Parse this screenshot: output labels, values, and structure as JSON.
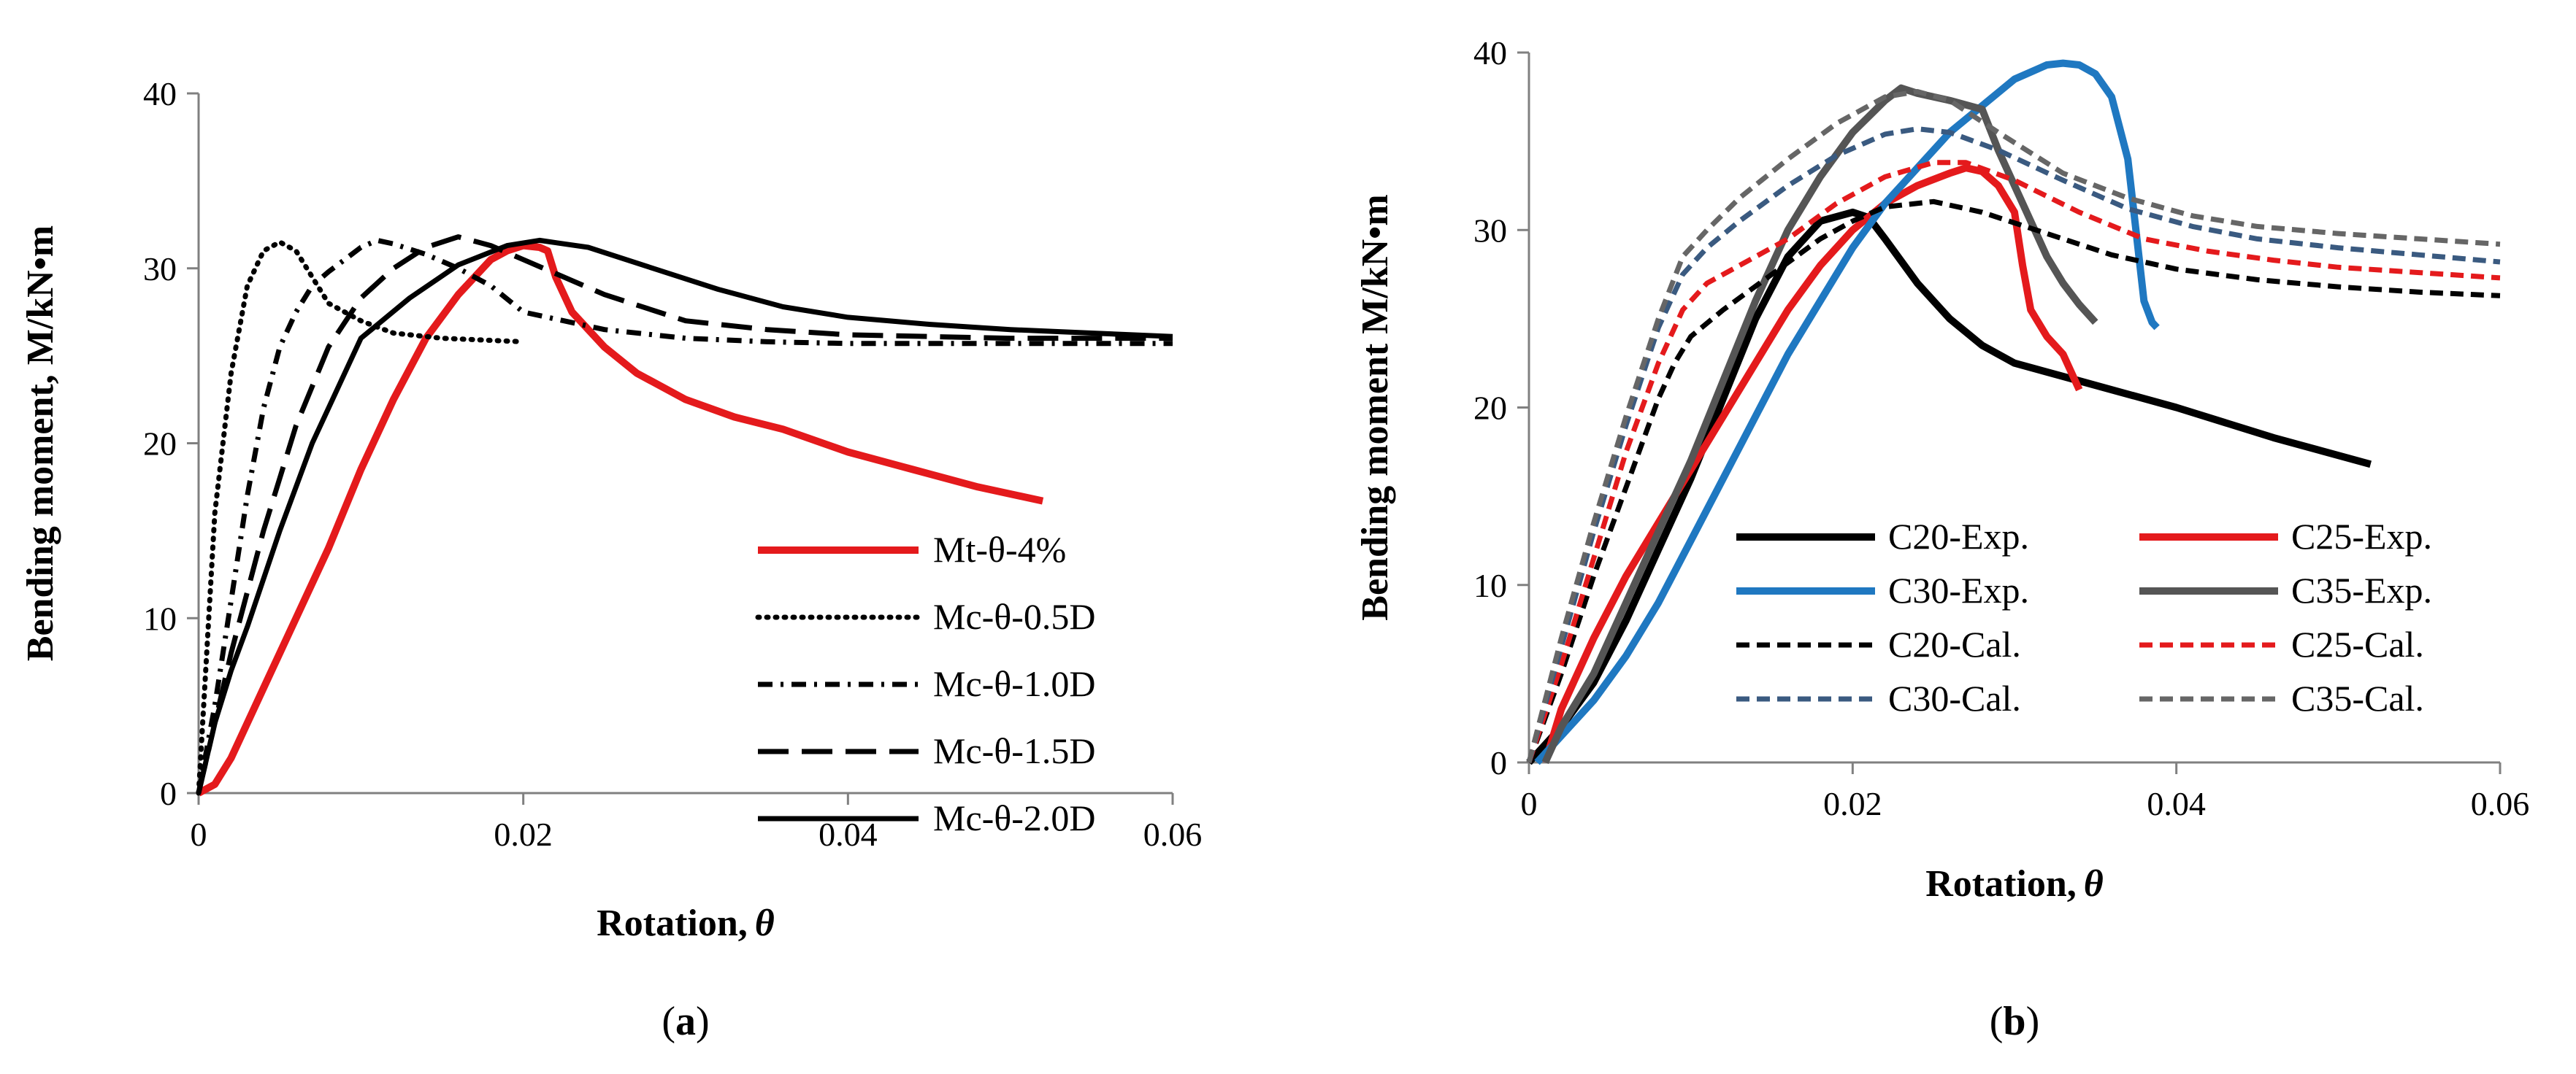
{
  "chart_data": [
    {
      "type": "line",
      "caption_letter": "a",
      "caption_open": "(",
      "caption_close": ")",
      "xlabel": "Rotation,",
      "xlabel_symbol": "θ",
      "ylabel": "Bending moment, M/kN•m",
      "xlim": [
        0,
        0.06
      ],
      "ylim": [
        0,
        40
      ],
      "xticks": [
        0,
        0.02,
        0.04,
        0.06
      ],
      "xtick_labels": [
        "0",
        "0.02",
        "0.04",
        "0.06"
      ],
      "yticks": [
        0,
        10,
        20,
        30,
        40
      ],
      "ytick_labels": [
        "0",
        "10",
        "20",
        "30",
        "40"
      ],
      "legend_position": "bottom-right",
      "series": [
        {
          "name": "Mt-θ-4%",
          "color": "#e41a1c",
          "style": "solid",
          "weight": "thick",
          "x": [
            0,
            0.001,
            0.002,
            0.004,
            0.006,
            0.008,
            0.01,
            0.012,
            0.014,
            0.016,
            0.018,
            0.019,
            0.02,
            0.021,
            0.0215,
            0.022,
            0.023,
            0.025,
            0.027,
            0.03,
            0.033,
            0.036,
            0.04,
            0.044,
            0.048,
            0.052
          ],
          "y": [
            0,
            0.5,
            2,
            6,
            10,
            14,
            18.5,
            22.5,
            26,
            28.5,
            30.5,
            31,
            31.3,
            31.2,
            31.0,
            29.5,
            27.5,
            25.5,
            24,
            22.5,
            21.5,
            20.8,
            19.5,
            18.5,
            17.5,
            16.7
          ]
        },
        {
          "name": "Mc-θ-0.5D",
          "color": "#000000",
          "style": "dotted",
          "weight": "normal",
          "x": [
            0,
            0.0005,
            0.001,
            0.002,
            0.003,
            0.004,
            0.005,
            0.006,
            0.007,
            0.008,
            0.01,
            0.012,
            0.015,
            0.02
          ],
          "y": [
            0,
            8,
            16,
            24,
            29,
            31,
            31.5,
            31,
            29.5,
            28,
            27,
            26.3,
            26,
            25.8
          ]
        },
        {
          "name": "Mc-θ-1.0D",
          "color": "#000000",
          "style": "dashdot",
          "weight": "normal",
          "x": [
            0,
            0.001,
            0.002,
            0.003,
            0.004,
            0.005,
            0.006,
            0.007,
            0.008,
            0.009,
            0.01,
            0.011,
            0.012,
            0.014,
            0.016,
            0.018,
            0.02,
            0.025,
            0.03,
            0.035,
            0.04,
            0.05,
            0.06
          ],
          "y": [
            0,
            5,
            11,
            17,
            22,
            25.5,
            27.5,
            29,
            29.8,
            30.5,
            31.2,
            31.6,
            31.4,
            30.8,
            30,
            29,
            27.5,
            26.5,
            26,
            25.8,
            25.7,
            25.7,
            25.7
          ]
        },
        {
          "name": "Mc-θ-1.5D",
          "color": "#000000",
          "style": "longdash",
          "weight": "normal",
          "x": [
            0,
            0.002,
            0.004,
            0.006,
            0.008,
            0.01,
            0.012,
            0.014,
            0.016,
            0.018,
            0.02,
            0.025,
            0.03,
            0.035,
            0.04,
            0.05,
            0.06
          ],
          "y": [
            0,
            8,
            15,
            21,
            25.5,
            28.3,
            30,
            31.2,
            31.8,
            31.3,
            30.5,
            28.5,
            27,
            26.5,
            26.2,
            26,
            26
          ]
        },
        {
          "name": "Mc-θ-2.0D",
          "color": "#000000",
          "style": "solid",
          "weight": "normal",
          "x": [
            0,
            0.001,
            0.002,
            0.003,
            0.005,
            0.007,
            0.01,
            0.013,
            0.016,
            0.019,
            0.021,
            0.024,
            0.028,
            0.032,
            0.036,
            0.04,
            0.045,
            0.05,
            0.055,
            0.06
          ],
          "y": [
            0,
            4,
            7,
            9.5,
            15,
            20,
            26,
            28.3,
            30.2,
            31.3,
            31.6,
            31.2,
            30,
            28.8,
            27.8,
            27.2,
            26.8,
            26.5,
            26.3,
            26.1
          ]
        }
      ]
    },
    {
      "type": "line",
      "caption_letter": "b",
      "caption_open": "(",
      "caption_close": ")",
      "xlabel": "Rotation,",
      "xlabel_symbol": "θ",
      "ylabel": "Bending moment M/kN•m",
      "xlim": [
        0,
        0.06
      ],
      "ylim": [
        0,
        40
      ],
      "xticks": [
        0,
        0.02,
        0.04,
        0.06
      ],
      "xtick_labels": [
        "0",
        "0.02",
        "0.04",
        "0.06"
      ],
      "yticks": [
        0,
        10,
        20,
        30,
        40
      ],
      "ytick_labels": [
        "0",
        "10",
        "20",
        "30",
        "40"
      ],
      "legend_position": "bottom-center",
      "series": [
        {
          "name": "C20-Exp.",
          "color": "#000000",
          "style": "solid",
          "weight": "thick",
          "x": [
            0,
            0.002,
            0.004,
            0.006,
            0.008,
            0.01,
            0.012,
            0.014,
            0.016,
            0.018,
            0.02,
            0.021,
            0.022,
            0.024,
            0.026,
            0.028,
            0.03,
            0.034,
            0.04,
            0.046,
            0.052
          ],
          "y": [
            0,
            2,
            4.5,
            8,
            12,
            16,
            20.5,
            25,
            28.5,
            30.5,
            31,
            30.7,
            29.5,
            27,
            25,
            23.5,
            22.5,
            21.5,
            20,
            18.3,
            16.8
          ]
        },
        {
          "name": "C25-Exp.",
          "color": "#e41a1c",
          "style": "solid",
          "weight": "thick",
          "x": [
            0.001,
            0.002,
            0.004,
            0.006,
            0.008,
            0.01,
            0.012,
            0.014,
            0.016,
            0.018,
            0.02,
            0.022,
            0.024,
            0.026,
            0.027,
            0.028,
            0.029,
            0.03,
            0.0305,
            0.031,
            0.032,
            0.033,
            0.034
          ],
          "y": [
            0,
            3,
            7,
            10.5,
            13.5,
            16.5,
            19.5,
            22.5,
            25.5,
            28,
            30,
            31.5,
            32.5,
            33.2,
            33.5,
            33.3,
            32.5,
            31,
            28,
            25.5,
            24,
            23,
            21
          ]
        },
        {
          "name": "C30-Exp.",
          "color": "#1f78c1",
          "style": "solid",
          "weight": "thick",
          "x": [
            0.0005,
            0.002,
            0.004,
            0.006,
            0.008,
            0.01,
            0.012,
            0.014,
            0.016,
            0.018,
            0.02,
            0.022,
            0.024,
            0.026,
            0.028,
            0.03,
            0.032,
            0.033,
            0.034,
            0.035,
            0.036,
            0.037,
            0.0375,
            0.038,
            0.0385,
            0.0388
          ],
          "y": [
            0,
            1.5,
            3.5,
            6,
            9,
            12.5,
            16,
            19.5,
            23,
            26,
            29,
            31.5,
            33.5,
            35.5,
            37,
            38.5,
            39.3,
            39.4,
            39.3,
            38.8,
            37.5,
            34,
            30,
            26,
            24.8,
            24.5
          ]
        },
        {
          "name": "C35-Exp.",
          "color": "#555555",
          "style": "solid",
          "weight": "thick",
          "x": [
            0.001,
            0.002,
            0.004,
            0.006,
            0.008,
            0.01,
            0.012,
            0.014,
            0.016,
            0.018,
            0.02,
            0.022,
            0.023,
            0.024,
            0.026,
            0.028,
            0.029,
            0.03,
            0.031,
            0.032,
            0.033,
            0.034,
            0.035
          ],
          "y": [
            0,
            2,
            5,
            9,
            13,
            17,
            21.5,
            26,
            30,
            33,
            35.5,
            37.3,
            38,
            37.7,
            37.3,
            36.8,
            34.5,
            32.5,
            30.5,
            28.5,
            27,
            25.8,
            24.8
          ]
        },
        {
          "name": "C20-Cal.",
          "color": "#000000",
          "style": "dashed",
          "weight": "normal",
          "x": [
            0,
            0.002,
            0.004,
            0.006,
            0.008,
            0.009,
            0.01,
            0.012,
            0.015,
            0.018,
            0.02,
            0.022,
            0.025,
            0.028,
            0.032,
            0.036,
            0.04,
            0.045,
            0.05,
            0.055,
            0.06
          ],
          "y": [
            0,
            5,
            10.5,
            15.5,
            20.5,
            22.5,
            24,
            25.5,
            27.5,
            29.5,
            30.5,
            31.3,
            31.6,
            31,
            29.8,
            28.6,
            27.8,
            27.2,
            26.8,
            26.5,
            26.3
          ]
        },
        {
          "name": "C25-Cal.",
          "color": "#e41a1c",
          "style": "dashed",
          "weight": "normal",
          "x": [
            0,
            0.002,
            0.004,
            0.006,
            0.008,
            0.0095,
            0.011,
            0.013,
            0.016,
            0.019,
            0.022,
            0.025,
            0.027,
            0.03,
            0.034,
            0.038,
            0.042,
            0.046,
            0.05,
            0.055,
            0.06
          ],
          "y": [
            0,
            5.5,
            11.5,
            17.5,
            22.5,
            25.5,
            27,
            28,
            29.5,
            31.5,
            33,
            33.8,
            33.8,
            32.8,
            31,
            29.5,
            28.8,
            28.3,
            27.9,
            27.6,
            27.3
          ]
        },
        {
          "name": "C30-Cal.",
          "color": "#3a5a80",
          "style": "dashed",
          "weight": "normal",
          "x": [
            0,
            0.002,
            0.004,
            0.006,
            0.008,
            0.0095,
            0.011,
            0.013,
            0.016,
            0.019,
            0.022,
            0.024,
            0.026,
            0.029,
            0.033,
            0.037,
            0.041,
            0.045,
            0.05,
            0.055,
            0.06
          ],
          "y": [
            0,
            6.5,
            13,
            19,
            24.5,
            27.5,
            29,
            30.5,
            32.5,
            34.2,
            35.4,
            35.7,
            35.5,
            34.5,
            32.8,
            31.2,
            30.2,
            29.5,
            29,
            28.6,
            28.2
          ]
        },
        {
          "name": "C35-Cal.",
          "color": "#666666",
          "style": "dashed",
          "weight": "normal",
          "x": [
            0,
            0.002,
            0.004,
            0.006,
            0.008,
            0.0095,
            0.011,
            0.013,
            0.016,
            0.019,
            0.022,
            0.024,
            0.026,
            0.029,
            0.033,
            0.037,
            0.041,
            0.045,
            0.05,
            0.055,
            0.06
          ],
          "y": [
            0,
            7,
            13.5,
            19.5,
            25,
            28.5,
            30,
            31.8,
            34,
            36,
            37.5,
            37.8,
            37.3,
            35.5,
            33.2,
            31.8,
            30.8,
            30.2,
            29.8,
            29.5,
            29.2
          ]
        }
      ]
    }
  ]
}
